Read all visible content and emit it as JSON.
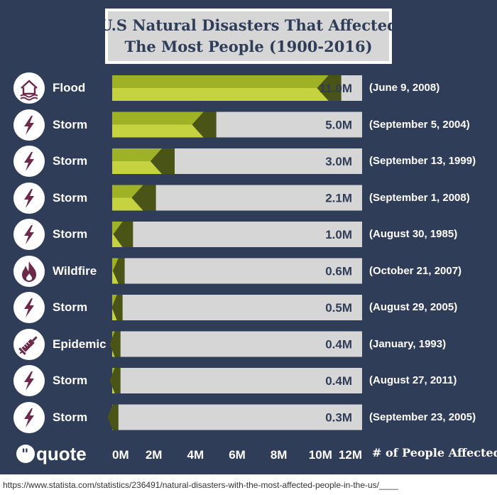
{
  "title_line1": "U.S Natural Disasters That Affected",
  "title_line2": "The Most People (1900-2016)",
  "logo_text": "quote",
  "x_axis_label": "# of People Affected",
  "source_url": "https://www.statista.com/statistics/236491/natural-disasters-with-the-most-affected-people-in-the-us/____",
  "colors": {
    "background": "#2f3d58",
    "bar_light": "#c6d341",
    "bar_dark": "#9fb226",
    "tip": "#4a5416",
    "track": "#d6d6d6",
    "icon_fg": "#6b2a4a"
  },
  "chart_data": {
    "type": "bar",
    "orientation": "horizontal",
    "categories": [
      "Flood",
      "Storm",
      "Storm",
      "Storm",
      "Storm",
      "Wildfire",
      "Storm",
      "Epidemic",
      "Storm",
      "Storm"
    ],
    "icons": [
      "house-flood-icon",
      "lightning-icon",
      "lightning-icon",
      "lightning-icon",
      "lightning-icon",
      "flame-icon",
      "lightning-icon",
      "syringe-icon",
      "lightning-icon",
      "lightning-icon"
    ],
    "values": [
      11.0,
      5.0,
      3.0,
      2.1,
      1.0,
      0.6,
      0.5,
      0.4,
      0.4,
      0.3
    ],
    "value_labels": [
      "11.0M",
      "5.0M",
      "3.0M",
      "2.1M",
      "1.0M",
      "0.6M",
      "0.5M",
      "0.4M",
      "0.4M",
      "0.3M"
    ],
    "dates": [
      "(June 9, 2008)",
      "(September 5, 2004)",
      "(September 13, 1999)",
      "(September 1, 2008)",
      "(August 30, 1985)",
      "(October 21, 2007)",
      "(August 29, 2005)",
      "(January, 1993)",
      "(August 27, 2011)",
      "(September 23, 2005)"
    ],
    "xlim": [
      0,
      12
    ],
    "xticks": [
      "0M",
      "2M",
      "4M",
      "6M",
      "8M",
      "10M",
      "12M"
    ],
    "grid": false
  }
}
